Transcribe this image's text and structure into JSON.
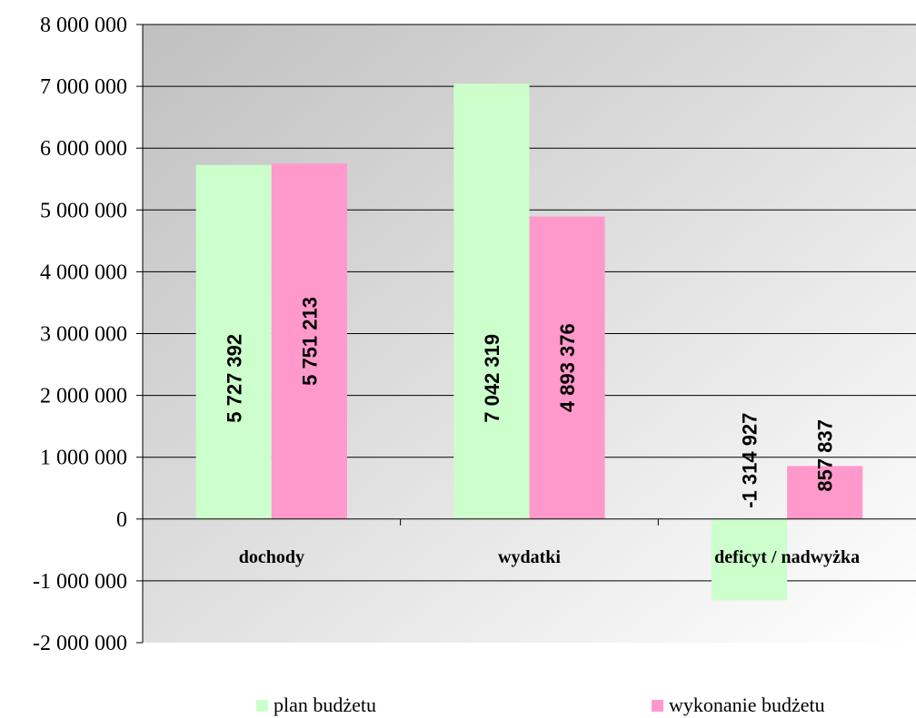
{
  "chart_data": {
    "type": "bar",
    "title": "",
    "xlabel": "",
    "ylabel": "",
    "categories": [
      "dochody",
      "wydatki",
      "deficyt / nadwyżka"
    ],
    "series": [
      {
        "name": "plan budżetu",
        "color": "#ccffcc",
        "values": [
          5727392,
          7042319,
          -1314927
        ],
        "labels": [
          "5 727 392",
          "7 042 319",
          "-1 314 927"
        ]
      },
      {
        "name": "wykonanie budżetu",
        "color": "#ff99cc",
        "values": [
          5751213,
          4893376,
          857837
        ],
        "labels": [
          "5 751 213",
          "4 893 376",
          "857 837"
        ]
      }
    ],
    "ylim": [
      -2000000,
      8000000
    ],
    "yticks": [
      -2000000,
      -1000000,
      0,
      1000000,
      2000000,
      3000000,
      4000000,
      5000000,
      6000000,
      7000000,
      8000000
    ],
    "ytick_labels": [
      "-2 000 000",
      "-1 000 000",
      "0",
      "1 000 000",
      "2 000 000",
      "3 000 000",
      "4 000 000",
      "5 000 000",
      "6 000 000",
      "7 000 000",
      "8 000 000"
    ],
    "grid": true,
    "legend_position": "bottom"
  }
}
